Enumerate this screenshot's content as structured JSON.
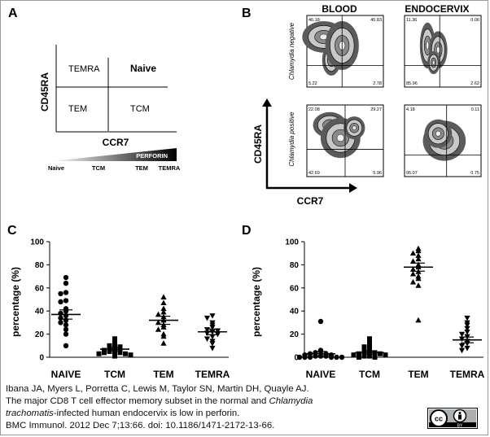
{
  "panelA": {
    "letter": "A",
    "ylabel": "CD45RA",
    "xlabel": "CCR7",
    "quadrants": {
      "tl": "TEMRA",
      "tr": "Naive",
      "bl": "TEM",
      "br": "TCM"
    },
    "gradient_label": "PERFORIN",
    "axis_points": [
      "Naive",
      "TCM",
      "TEM",
      "TEMRA"
    ]
  },
  "panelB": {
    "letter": "B",
    "col_blood": "BLOOD",
    "col_endo": "ENDOCERVIX",
    "row_neg": "Chlamydia negative",
    "row_pos": "Chlamydia positive",
    "ylabel": "CD45RA",
    "xlabel": "CCR7",
    "plots": [
      {
        "tl": "46.18",
        "tr": "45.83",
        "bl": "5.22",
        "br": "2.78"
      },
      {
        "tl": "11.36",
        "tr": "0.06",
        "bl": "85.96",
        "br": "2.62"
      },
      {
        "tl": "22.08",
        "tr": "29.27",
        "bl": "42.69",
        "br": "5.96"
      },
      {
        "tl": "4.18",
        "tr": "0.11",
        "bl": "95.07",
        "br": "0.75"
      }
    ]
  },
  "panelC": {
    "letter": "C",
    "ylabel": "percentage (%)",
    "yticks": [
      "0",
      "20",
      "40",
      "60",
      "80",
      "100"
    ],
    "categories": [
      "NAIVE",
      "TCM",
      "TEM",
      "TEMRA"
    ]
  },
  "panelD": {
    "letter": "D",
    "ylabel": "percentage (%)",
    "yticks": [
      "0",
      "20",
      "40",
      "60",
      "80",
      "100"
    ],
    "categories": [
      "NAIVE",
      "TCM",
      "TEM",
      "TEMRA"
    ]
  },
  "chart_data": [
    {
      "type": "scatter",
      "panel": "C",
      "ylim": [
        0,
        100
      ],
      "ylabel": "percentage (%)",
      "categories": [
        "NAIVE",
        "TCM",
        "TEM",
        "TEMRA"
      ],
      "markers": [
        "circle",
        "square",
        "triangle-up",
        "triangle-down"
      ],
      "points": [
        [
          69,
          64,
          56,
          55,
          49,
          48,
          42,
          40,
          38,
          36,
          34,
          32,
          30,
          28,
          24,
          20,
          10
        ],
        [
          16,
          13,
          11,
          10,
          9,
          8,
          7,
          6,
          6,
          5,
          5,
          4,
          4,
          3,
          3,
          2,
          1
        ],
        [
          52,
          47,
          42,
          39,
          37,
          35,
          32,
          30,
          28,
          26,
          24,
          20,
          18,
          12
        ],
        [
          36,
          34,
          30,
          28,
          26,
          24,
          23,
          22,
          21,
          20,
          18,
          16,
          14,
          12,
          8
        ]
      ],
      "means": [
        37,
        7,
        32,
        22
      ],
      "errors": [
        4,
        1.5,
        3.5,
        2.5
      ]
    },
    {
      "type": "scatter",
      "panel": "D",
      "ylim": [
        0,
        100
      ],
      "ylabel": "percentage (%)",
      "categories": [
        "NAIVE",
        "TCM",
        "TEM",
        "TEMRA"
      ],
      "markers": [
        "circle",
        "square",
        "triangle-up",
        "triangle-down"
      ],
      "points": [
        [
          31,
          6,
          5,
          4,
          3,
          3,
          2,
          2,
          1,
          1,
          1,
          0,
          0,
          0,
          0,
          0,
          0
        ],
        [
          16,
          15,
          11,
          9,
          8,
          6,
          5,
          4,
          4,
          3,
          3,
          2,
          2,
          1,
          1,
          0,
          0
        ],
        [
          94,
          92,
          90,
          88,
          85,
          83,
          80,
          78,
          76,
          74,
          72,
          70,
          68,
          65,
          62,
          32
        ],
        [
          34,
          30,
          28,
          25,
          22,
          20,
          18,
          16,
          14,
          12,
          10,
          8,
          6
        ]
      ],
      "means": [
        3,
        4,
        78,
        15
      ],
      "errors": [
        2,
        1.5,
        3.5,
        2.5
      ]
    }
  ],
  "citation": {
    "line1": "Ibana JA, Myers L, Porretta C, Lewis M, Taylor SN, Martin DH, Quayle AJ.",
    "line2_pre": "The major CD8 T cell effector memory subset in the normal and ",
    "line2_em": "Chlamydia",
    "line3_em": "trachomatis",
    "line3_post": "-infected human endocervix is low in perforin.",
    "line4": "BMC Immunol. 2012 Dec 7;13:66. doi: 10.1186/1471-2172-13-66."
  },
  "license": {
    "cc": "cc",
    "by": "BY"
  }
}
